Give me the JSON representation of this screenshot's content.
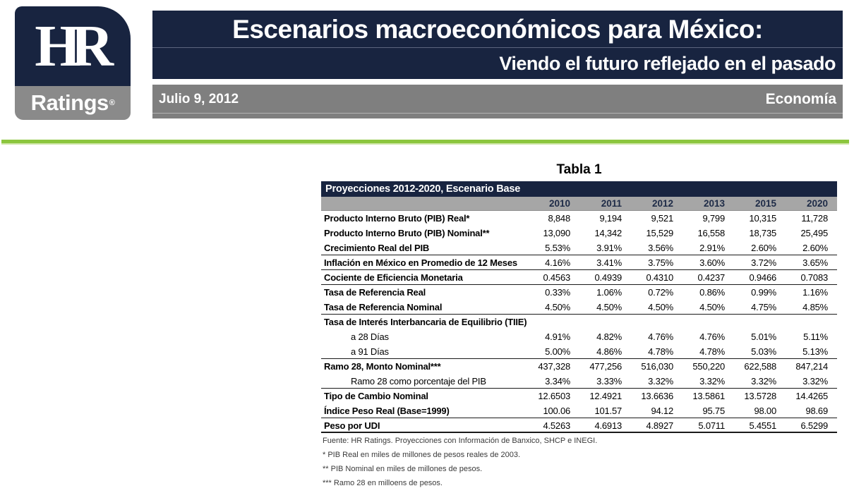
{
  "header": {
    "logo": {
      "monogram": "HR",
      "wordmark": "Ratings",
      "registered_mark": "®"
    },
    "title": "Escenarios macroeconómicos para México:",
    "subtitle": "Viendo el futuro reflejado en el pasado",
    "date": "Julio 9, 2012",
    "section": "Economía"
  },
  "table": {
    "caption": "Tabla 1",
    "title": "Proyecciones 2012-2020, Escenario Base",
    "years": [
      "2010",
      "2011",
      "2012",
      "2013",
      "2015",
      "2020"
    ],
    "rows": [
      {
        "label": "Producto Interno Bruto (PIB) Real*",
        "bold": true,
        "indent": false,
        "rule_below": "none",
        "values": [
          "8,848",
          "9,194",
          "9,521",
          "9,799",
          "10,315",
          "11,728"
        ]
      },
      {
        "label": "Producto Interno Bruto (PIB) Nominal**",
        "bold": true,
        "indent": false,
        "rule_below": "none",
        "values": [
          "13,090",
          "14,342",
          "15,529",
          "16,558",
          "18,735",
          "25,495"
        ]
      },
      {
        "label": "Crecimiento Real del PIB",
        "bold": true,
        "indent": false,
        "rule_below": "thin",
        "values": [
          "5.53%",
          "3.91%",
          "3.56%",
          "2.91%",
          "2.60%",
          "2.60%"
        ]
      },
      {
        "label": "Inflación en México en Promedio de 12 Meses",
        "bold": true,
        "indent": false,
        "rule_below": "thin",
        "values": [
          "4.16%",
          "3.41%",
          "3.75%",
          "3.60%",
          "3.72%",
          "3.65%"
        ]
      },
      {
        "label": "Cociente de Eficiencia Monetaria",
        "bold": true,
        "indent": false,
        "rule_below": "thin",
        "values": [
          "0.4563",
          "0.4939",
          "0.4310",
          "0.4237",
          "0.9466",
          "0.7083"
        ]
      },
      {
        "label": "Tasa de Referencia Real",
        "bold": true,
        "indent": false,
        "rule_below": "none",
        "values": [
          "0.33%",
          "1.06%",
          "0.72%",
          "0.86%",
          "0.99%",
          "1.16%"
        ]
      },
      {
        "label": "Tasa de Referencia Nominal",
        "bold": true,
        "indent": false,
        "rule_below": "thin",
        "values": [
          "4.50%",
          "4.50%",
          "4.50%",
          "4.50%",
          "4.75%",
          "4.85%"
        ]
      },
      {
        "label": "Tasa de Interés Interbancaria de Equilibrio  (TIIE)",
        "bold": true,
        "indent": false,
        "rule_below": "none",
        "values": [
          "",
          "",
          "",
          "",
          "",
          ""
        ]
      },
      {
        "label": "a 28 Días",
        "bold": false,
        "indent": true,
        "rule_below": "none",
        "values": [
          "4.91%",
          "4.82%",
          "4.76%",
          "4.76%",
          "5.01%",
          "5.11%"
        ]
      },
      {
        "label": "a 91 Días",
        "bold": false,
        "indent": true,
        "rule_below": "thin",
        "values": [
          "5.00%",
          "4.86%",
          "4.78%",
          "4.78%",
          "5.03%",
          "5.13%"
        ]
      },
      {
        "label": "Ramo 28, Monto Nominal***",
        "bold": true,
        "indent": false,
        "rule_below": "none",
        "values": [
          "437,328",
          "477,256",
          "516,030",
          "550,220",
          "622,588",
          "847,214"
        ]
      },
      {
        "label": "Ramo 28 como porcentaje del PIB",
        "bold": false,
        "indent": true,
        "rule_below": "thin",
        "values": [
          "3.34%",
          "3.33%",
          "3.32%",
          "3.32%",
          "3.32%",
          "3.32%"
        ]
      },
      {
        "label": "Tipo de Cambio Nominal",
        "bold": true,
        "indent": false,
        "rule_below": "none",
        "values": [
          "12.6503",
          "12.4921",
          "13.6636",
          "13.5861",
          "13.5728",
          "14.4265"
        ]
      },
      {
        "label": "Índice Peso Real (Base=1999)",
        "bold": true,
        "indent": false,
        "rule_below": "thin",
        "values": [
          "100.06",
          "101.57",
          "94.12",
          "95.75",
          "98.00",
          "98.69"
        ]
      },
      {
        "label": "Peso por UDI",
        "bold": true,
        "indent": false,
        "rule_below": "thick",
        "values": [
          "4.5263",
          "4.6913",
          "4.8927",
          "5.0711",
          "5.4551",
          "6.5299"
        ]
      }
    ]
  },
  "footnotes": [
    "Fuente: HR Ratings. Proyecciones con Información de Banxico, SHCP e INEGI.",
    "* PIB Real en miles de millones de pesos reales de 2003.",
    "** PIB Nominal en miles de millones de pesos.",
    "*** Ramo 28 en milloens de pesos."
  ],
  "colors": {
    "navy": "#182440",
    "bar_gray": "#7f7f7f",
    "logo_gray": "#8a8a8a",
    "year_row_gray": "#a6a6a6",
    "green_rule": "#8cc63e",
    "green_rule_light": "#cde4a4"
  }
}
